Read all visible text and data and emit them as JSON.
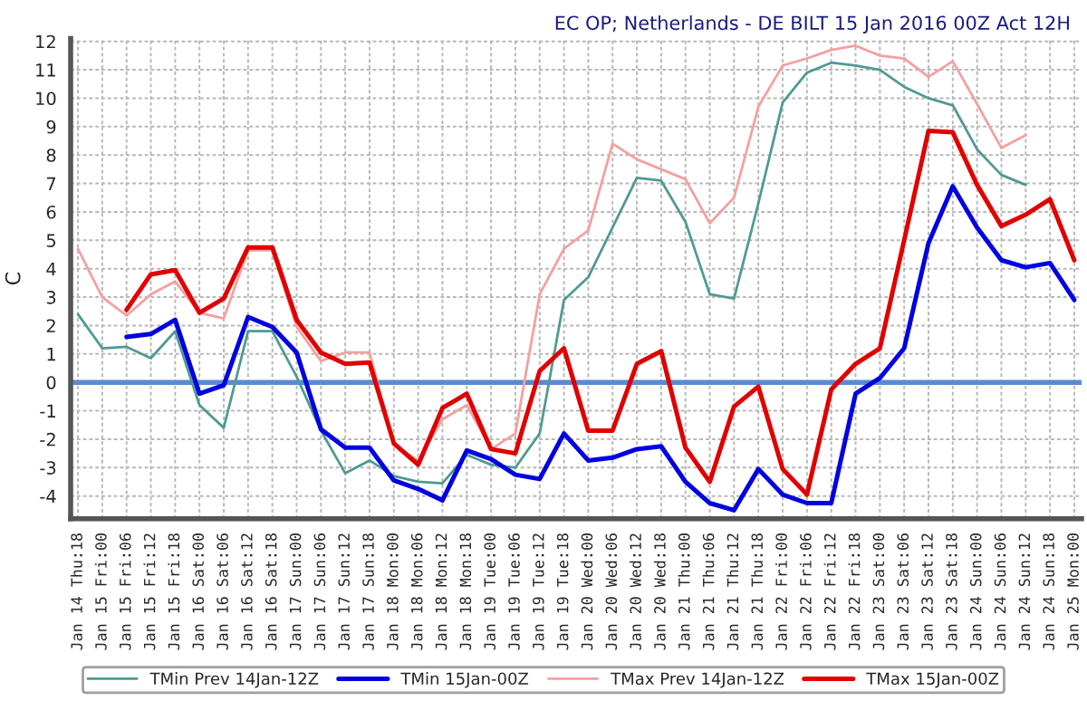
{
  "chart_data": {
    "type": "line",
    "title": "EC OP; Netherlands - DE BILT 15 Jan 2016 00Z Act 12H",
    "ylabel": "C",
    "categories": [
      "Jan 14 Thu:18",
      "Jan 15 Fri:00",
      "Jan 15 Fri:06",
      "Jan 15 Fri:12",
      "Jan 15 Fri:18",
      "Jan 16 Sat:00",
      "Jan 16 Sat:06",
      "Jan 16 Sat:12",
      "Jan 16 Sat:18",
      "Jan 17 Sun:00",
      "Jan 17 Sun:06",
      "Jan 17 Sun:12",
      "Jan 17 Sun:18",
      "Jan 18 Mon:00",
      "Jan 18 Mon:06",
      "Jan 18 Mon:12",
      "Jan 18 Mon:18",
      "Jan 19 Tue:00",
      "Jan 19 Tue:06",
      "Jan 19 Tue:12",
      "Jan 19 Tue:18",
      "Jan 20 Wed:00",
      "Jan 20 Wed:06",
      "Jan 20 Wed:12",
      "Jan 20 Wed:18",
      "Jan 21 Thu:00",
      "Jan 21 Thu:06",
      "Jan 21 Thu:12",
      "Jan 21 Thu:18",
      "Jan 22 Fri:00",
      "Jan 22 Fri:06",
      "Jan 22 Fri:12",
      "Jan 22 Fri:18",
      "Jan 23 Sat:00",
      "Jan 23 Sat:06",
      "Jan 23 Sat:12",
      "Jan 23 Sat:18",
      "Jan 24 Sun:00",
      "Jan 24 Sun:06",
      "Jan 24 Sun:12",
      "Jan 24 Sun:18",
      "Jan 25 Mon:00"
    ],
    "series": [
      {
        "name": "TMin Prev 14Jan-12Z",
        "color": "#4f9a94",
        "values": [
          2.4,
          1.2,
          1.25,
          0.85,
          1.8,
          -0.8,
          -1.6,
          1.8,
          1.8,
          0.2,
          -1.7,
          -3.2,
          -2.75,
          -3.3,
          -3.5,
          -3.55,
          -2.55,
          -2.9,
          -3.0,
          -1.8,
          2.9,
          3.7,
          5.45,
          7.2,
          7.1,
          5.65,
          3.1,
          2.95,
          6.3,
          9.85,
          10.9,
          11.25,
          11.15,
          11.0,
          10.4,
          10.0,
          9.75,
          8.2,
          7.3,
          6.95,
          null,
          null
        ]
      },
      {
        "name": "TMin 15Jan-00Z",
        "color": "#0000e0",
        "values": [
          null,
          null,
          1.6,
          1.7,
          2.2,
          -0.4,
          -0.1,
          2.3,
          1.95,
          1.05,
          -1.65,
          -2.3,
          -2.3,
          -3.45,
          -3.75,
          -4.15,
          -2.4,
          -2.7,
          -3.25,
          -3.4,
          -1.8,
          -2.75,
          -2.65,
          -2.35,
          -2.25,
          -3.5,
          -4.25,
          -4.5,
          -3.05,
          -3.95,
          -4.25,
          -4.25,
          -0.4,
          0.15,
          1.2,
          4.9,
          6.9,
          5.45,
          4.3,
          4.05,
          4.2,
          2.9
        ]
      },
      {
        "name": "TMax Prev 14Jan-12Z",
        "color": "#f4a0a0",
        "values": [
          4.7,
          3.0,
          2.35,
          3.1,
          3.55,
          2.45,
          2.25,
          4.65,
          4.65,
          1.95,
          0.75,
          1.05,
          1.05,
          -2.2,
          -2.75,
          -1.3,
          -0.8,
          -2.35,
          -1.8,
          3.1,
          4.7,
          5.35,
          8.4,
          7.85,
          7.5,
          7.15,
          5.6,
          6.5,
          9.7,
          11.15,
          11.4,
          11.7,
          11.85,
          11.5,
          11.4,
          10.75,
          11.3,
          9.8,
          8.25,
          8.7,
          null,
          null
        ]
      },
      {
        "name": "TMax 15Jan-00Z",
        "color": "#e00000",
        "values": [
          null,
          null,
          2.55,
          3.8,
          3.95,
          2.45,
          2.95,
          4.75,
          4.75,
          2.2,
          1.05,
          0.65,
          0.7,
          -2.15,
          -2.9,
          -0.9,
          -0.4,
          -2.35,
          -2.5,
          0.4,
          1.2,
          -1.7,
          -1.7,
          0.65,
          1.1,
          -2.3,
          -3.5,
          -0.85,
          -0.15,
          -3.05,
          -3.95,
          -0.25,
          0.65,
          1.2,
          5.0,
          8.85,
          8.8,
          6.95,
          5.5,
          5.9,
          6.45,
          4.3
        ]
      }
    ],
    "ylim": [
      -4.8,
      12.1
    ],
    "yticks": [
      -4,
      -3,
      -2,
      -1,
      0,
      1,
      2,
      3,
      4,
      5,
      6,
      7,
      8,
      9,
      10,
      11,
      12
    ],
    "ref_lines": [
      {
        "axis": "y",
        "value": 0,
        "color": "#5b8bd0"
      }
    ],
    "grid": true,
    "legend": "bottom"
  }
}
